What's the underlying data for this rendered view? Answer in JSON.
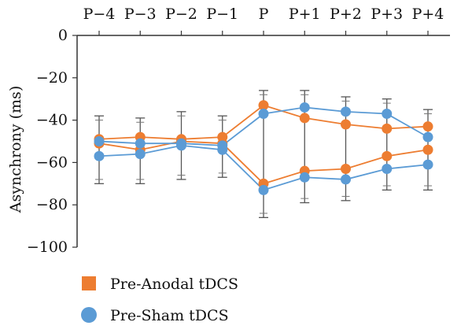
{
  "chart_data": {
    "type": "line",
    "title": "",
    "xlabel": "",
    "ylabel": "Asynchrony (ms)",
    "x_axis_position": "top",
    "categories": [
      "P−4",
      "P−3",
      "P−2",
      "P−1",
      "P",
      "P+1",
      "P+2",
      "P+3",
      "P+4"
    ],
    "ylim": [
      -100,
      0
    ],
    "yticks": [
      0,
      -20,
      -40,
      -60,
      -80,
      -100
    ],
    "ytick_labels": [
      "0",
      "−20",
      "−40",
      "−60",
      "−80",
      "−100"
    ],
    "grid": false,
    "legend_position": "bottom-left",
    "series": [
      {
        "name": "Pre-Anodal tDCS",
        "color": "#ED7D31",
        "marker": "square",
        "lines": [
          {
            "values": [
              -49,
              -48,
              -49,
              -48,
              -33,
              -39,
              -42,
              -44,
              -43
            ]
          },
          {
            "values": [
              -51,
              -54,
              -50,
              -51,
              -70,
              -64,
              -63,
              -57,
              -54
            ]
          }
        ]
      },
      {
        "name": "Pre-Sham tDCS",
        "color": "#5B9BD5",
        "marker": "circle",
        "lines": [
          {
            "values": [
              -50,
              -51,
              -51,
              -52,
              -37,
              -34,
              -36,
              -37,
              -48
            ]
          },
          {
            "values": [
              -57,
              -56,
              -52,
              -54,
              -73,
              -67,
              -68,
              -63,
              -61
            ]
          }
        ]
      }
    ],
    "error_bars": [
      {
        "x": 0,
        "center": -50,
        "upper": -38,
        "lower": -70
      },
      {
        "x": 1,
        "center": -51,
        "upper": -39,
        "lower": -70
      },
      {
        "x": 2,
        "center": -50,
        "upper": -36,
        "lower": -68
      },
      {
        "x": 3,
        "center": -51,
        "upper": -38,
        "lower": -67
      },
      {
        "x": 4,
        "center": -53,
        "upper": -26,
        "lower": -86
      },
      {
        "x": 5,
        "center": -52,
        "upper": -26,
        "lower": -79
      },
      {
        "x": 6,
        "center": -53,
        "upper": -29,
        "lower": -78
      },
      {
        "x": 7,
        "center": -51,
        "upper": -30,
        "lower": -73
      },
      {
        "x": 8,
        "center": -51,
        "upper": -35,
        "lower": -73
      }
    ]
  }
}
